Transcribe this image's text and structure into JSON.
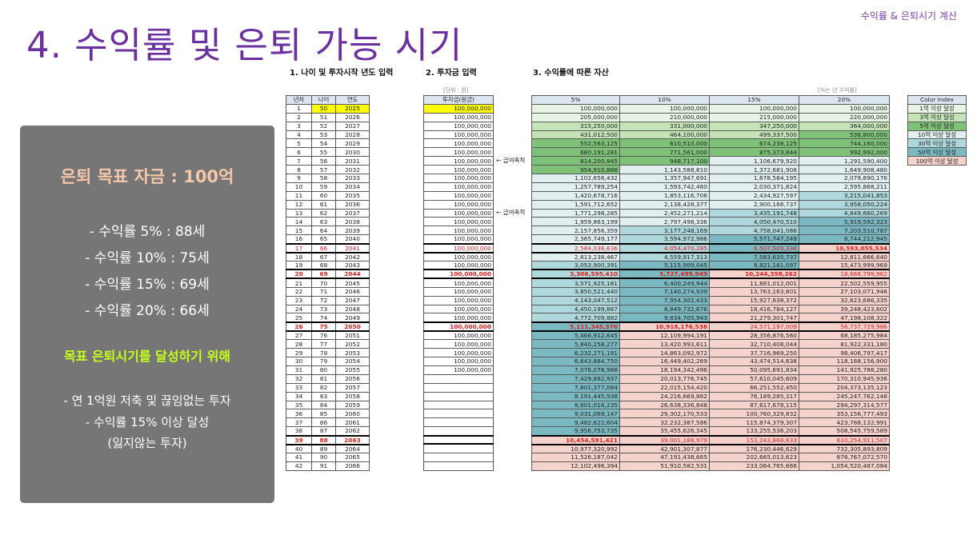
{
  "corner_label": "수익률 & 은퇴시기 계산",
  "title": "4. 수익률 및 은퇴 가능 시기",
  "sections": {
    "s1": "1. 나이 및 투자시작 년도 입력",
    "s2": "2. 투자금 입력",
    "s3": "3. 수익률에 따른 자산"
  },
  "panel": {
    "goal": "은퇴 목표 자금 : 100억",
    "rates": [
      "- 수익률    5% : 88세",
      "- 수익률 10% : 75세",
      "- 수익률 15% : 69세",
      "- 수익률 20% : 66세"
    ],
    "green": "목표 은퇴시기를 달성하기 위해",
    "points": [
      "- 연 1억원 저축 및 끊임없는 투자",
      "- 수익률 15% 이상 달성",
      "(잃지않는 투자)"
    ]
  },
  "units": {
    "won": "[단위 : 원]",
    "rate": "[%는 년 수익률]"
  },
  "notes": {
    "pension": "← 급여축적"
  },
  "colors": {
    "none": "#ffffff",
    "c1": "#e8f4e4",
    "c3": "#c4e4b8",
    "c5": "#7dc277",
    "c10": "#e1eff1",
    "c30": "#aed8dc",
    "c50": "#7bb9c2",
    "c100": "#f6d2cc",
    "yellow": "#ffff00"
  },
  "table1": {
    "headers": [
      "년차",
      "나이",
      "연도"
    ],
    "rows": [
      [
        "1",
        "50",
        "2025"
      ],
      [
        "2",
        "51",
        "2026"
      ],
      [
        "3",
        "52",
        "2027"
      ],
      [
        "4",
        "53",
        "2028"
      ],
      [
        "5",
        "54",
        "2029"
      ],
      [
        "6",
        "55",
        "2030"
      ],
      [
        "7",
        "56",
        "2031"
      ],
      [
        "8",
        "57",
        "2032"
      ],
      [
        "9",
        "58",
        "2033"
      ],
      [
        "10",
        "59",
        "2034"
      ],
      [
        "11",
        "60",
        "2035"
      ],
      [
        "12",
        "61",
        "2036"
      ],
      [
        "13",
        "62",
        "2037"
      ],
      [
        "14",
        "63",
        "2038"
      ],
      [
        "15",
        "64",
        "2039"
      ],
      [
        "16",
        "65",
        "2040"
      ],
      [
        "17",
        "66",
        "2041"
      ],
      [
        "18",
        "67",
        "2042"
      ],
      [
        "19",
        "68",
        "2043"
      ],
      [
        "20",
        "69",
        "2044"
      ],
      [
        "21",
        "70",
        "2045"
      ],
      [
        "22",
        "71",
        "2046"
      ],
      [
        "23",
        "72",
        "2047"
      ],
      [
        "24",
        "73",
        "2048"
      ],
      [
        "25",
        "74",
        "2049"
      ],
      [
        "26",
        "75",
        "2050"
      ],
      [
        "27",
        "76",
        "2051"
      ],
      [
        "28",
        "77",
        "2052"
      ],
      [
        "29",
        "78",
        "2053"
      ],
      [
        "30",
        "79",
        "2054"
      ],
      [
        "31",
        "80",
        "2055"
      ],
      [
        "32",
        "81",
        "2056"
      ],
      [
        "33",
        "82",
        "2057"
      ],
      [
        "34",
        "83",
        "2058"
      ],
      [
        "35",
        "84",
        "2059"
      ],
      [
        "36",
        "85",
        "2060"
      ],
      [
        "37",
        "86",
        "2061"
      ],
      [
        "38",
        "87",
        "2062"
      ],
      [
        "39",
        "88",
        "2063"
      ],
      [
        "40",
        "89",
        "2064"
      ],
      [
        "41",
        "90",
        "2065"
      ],
      [
        "42",
        "91",
        "2066"
      ]
    ]
  },
  "table2": {
    "header": "투자금(원금)",
    "rows": [
      "100,000,000",
      "100,000,000",
      "100,000,000",
      "100,000,000",
      "100,000,000",
      "100,000,000",
      "100,000,000",
      "100,000,000",
      "100,000,000",
      "100,000,000",
      "100,000,000",
      "100,000,000",
      "100,000,000",
      "100,000,000",
      "100,000,000",
      "100,000,000",
      "100,000,000",
      "100,000,000",
      "100,000,000",
      "100,000,000",
      "100,000,000",
      "100,000,000",
      "100,000,000",
      "100,000,000",
      "100,000,000",
      "100,000,000",
      "100,000,000",
      "100,000,000",
      "100,000,000",
      "100,000,000",
      "100,000,000",
      "",
      "",
      "",
      "",
      "",
      "",
      "",
      "",
      "",
      "",
      ""
    ]
  },
  "table3": {
    "headers": [
      "5%",
      "10%",
      "15%",
      "20%"
    ],
    "rows": [
      [
        "100,000,000",
        "100,000,000",
        "100,000,000",
        "100,000,000"
      ],
      [
        "205,000,000",
        "210,000,000",
        "215,000,000",
        "220,000,000"
      ],
      [
        "315,250,000",
        "331,000,000",
        "347,250,000",
        "364,000,000"
      ],
      [
        "431,012,500",
        "464,100,000",
        "499,337,500",
        "536,800,000"
      ],
      [
        "552,563,125",
        "610,510,000",
        "674,238,125",
        "744,160,000"
      ],
      [
        "680,191,281",
        "771,561,000",
        "875,373,844",
        "992,992,000"
      ],
      [
        "814,200,845",
        "948,717,100",
        "1,106,679,920",
        "1,291,590,400"
      ],
      [
        "954,910,888",
        "1,143,588,810",
        "1,372,681,908",
        "1,649,908,480"
      ],
      [
        "1,102,656,432",
        "1,357,947,691",
        "1,678,584,195",
        "2,079,890,176"
      ],
      [
        "1,257,789,254",
        "1,593,742,460",
        "2,030,371,824",
        "2,595,868,211"
      ],
      [
        "1,420,678,716",
        "1,853,116,706",
        "2,434,927,597",
        "3,215,041,853"
      ],
      [
        "1,591,712,652",
        "2,138,428,377",
        "2,900,166,737",
        "3,958,050,224"
      ],
      [
        "1,771,298,285",
        "2,452,271,214",
        "3,435,191,748",
        "4,849,660,269"
      ],
      [
        "1,959,863,199",
        "2,797,498,336",
        "4,050,470,510",
        "5,919,592,323"
      ],
      [
        "2,157,856,359",
        "3,177,248,169",
        "4,758,041,086",
        "7,203,510,787"
      ],
      [
        "2,365,749,177",
        "3,594,972,986",
        "5,571,747,249",
        "8,744,212,945"
      ],
      [
        "2,584,036,636",
        "4,054,470,285",
        "6,507,509,336",
        "10,593,055,534"
      ],
      [
        "2,813,238,467",
        "4,559,917,313",
        "7,583,635,737",
        "12,811,666,640"
      ],
      [
        "3,053,900,391",
        "5,115,909,045",
        "8,821,181,097",
        "15,473,999,969"
      ],
      [
        "3,306,595,410",
        "5,727,499,949",
        "10,244,358,262",
        "18,668,799,962"
      ],
      [
        "3,571,925,181",
        "6,400,249,944",
        "11,881,012,001",
        "22,502,559,955"
      ],
      [
        "3,850,521,440",
        "7,140,274,939",
        "13,763,163,801",
        "27,103,071,946"
      ],
      [
        "4,143,047,512",
        "7,954,302,433",
        "15,927,638,372",
        "32,623,686,335"
      ],
      [
        "4,450,199,887",
        "8,849,732,676",
        "18,416,784,127",
        "39,248,423,602"
      ],
      [
        "4,772,709,882",
        "9,834,705,943",
        "21,279,301,747",
        "47,198,108,322"
      ],
      [
        "5,111,345,376",
        "10,918,176,538",
        "24,571,197,009",
        "56,737,729,986"
      ],
      [
        "5,466,912,645",
        "12,109,994,191",
        "28,356,876,560",
        "68,185,275,984"
      ],
      [
        "5,840,258,277",
        "13,420,993,611",
        "32,710,408,044",
        "81,922,331,180"
      ],
      [
        "6,232,271,191",
        "14,863,092,972",
        "37,716,969,250",
        "98,406,797,417"
      ],
      [
        "6,643,884,750",
        "16,449,402,269",
        "43,474,514,638",
        "118,188,156,900"
      ],
      [
        "7,076,078,988",
        "18,194,342,496",
        "50,095,691,834",
        "141,925,788,280"
      ],
      [
        "7,429,882,937",
        "20,013,776,745",
        "57,610,045,609",
        "170,310,945,936"
      ],
      [
        "7,801,377,084",
        "22,015,154,420",
        "66,251,552,450",
        "204,373,135,123"
      ],
      [
        "8,191,445,938",
        "24,216,669,862",
        "76,189,285,317",
        "245,247,762,148"
      ],
      [
        "8,601,018,235",
        "26,638,336,848",
        "87,617,678,115",
        "294,297,314,577"
      ],
      [
        "9,031,069,147",
        "29,302,170,533",
        "100,760,329,832",
        "353,156,777,493"
      ],
      [
        "9,482,622,604",
        "32,232,387,586",
        "115,874,379,307",
        "423,788,132,991"
      ],
      [
        "9,956,753,735",
        "35,455,626,345",
        "133,255,536,203",
        "508,545,759,589"
      ],
      [
        "10,454,591,421",
        "39,001,188,979",
        "153,243,866,633",
        "610,254,911,507"
      ],
      [
        "10,977,320,992",
        "42,901,307,877",
        "176,230,446,629",
        "732,305,893,809"
      ],
      [
        "11,526,187,042",
        "47,191,438,665",
        "202,665,013,623",
        "878,767,072,570"
      ],
      [
        "12,102,496,394",
        "51,910,582,531",
        "233,064,765,666",
        "1,054,520,487,084"
      ]
    ]
  },
  "color_index": {
    "header": "Color Index",
    "items": [
      {
        "label": "1억 이상 달성",
        "color": "#e8f4e4"
      },
      {
        "label": "3억 이상 달성",
        "color": "#c4e4b8"
      },
      {
        "label": "5억 이상 달성",
        "color": "#7dc277"
      },
      {
        "label": "10억 이상 달성",
        "color": "#e1eff1"
      },
      {
        "label": "30억 이상 달성",
        "color": "#aed8dc"
      },
      {
        "label": "50억 이상 달성",
        "color": "#7bb9c2"
      },
      {
        "label": "100억 이상 달성",
        "color": "#f6d2cc"
      }
    ]
  }
}
